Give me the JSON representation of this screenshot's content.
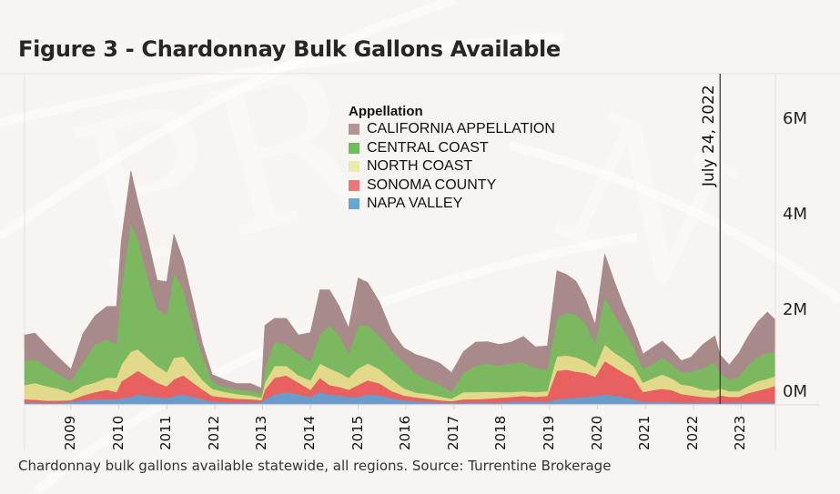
{
  "figure": {
    "title": "Figure 3 - Chardonnay Bulk Gallons Available",
    "caption": "Chardonnay bulk gallons available statewide, all regions. Source: Turrentine Brokerage"
  },
  "chart_data": {
    "type": "area",
    "stacked": true,
    "title": "Figure 3 - Chardonnay Bulk Gallons Available",
    "xlabel": "",
    "ylabel": "",
    "units": "millions of gallons",
    "x_tick_labels": [
      "2009",
      "2010",
      "2011",
      "2012",
      "2013",
      "2014",
      "2015",
      "2016",
      "2017",
      "2018",
      "2019",
      "2020",
      "2021",
      "2022",
      "2023"
    ],
    "y_tick_labels": [
      "0M",
      "2M",
      "4M",
      "6M"
    ],
    "ylim": [
      0,
      6.8
    ],
    "xlim": [
      2008.03,
      2023.7
    ],
    "grid": false,
    "legend": {
      "title": "Appellation",
      "placement": "top-center",
      "entries": [
        "CALIFORNIA APPELLATION",
        "CENTRAL COAST",
        "NORTH COAST",
        "SONOMA COUNTY",
        "NAPA VALLEY"
      ]
    },
    "annotation": {
      "label": "July 24, 2022",
      "x": 2022.56
    },
    "x": [
      2008.03,
      2008.25,
      2008.5,
      2008.75,
      2009.0,
      2009.25,
      2009.5,
      2009.75,
      2009.95,
      2010.05,
      2010.25,
      2010.4,
      2010.6,
      2010.8,
      2011.0,
      2011.15,
      2011.35,
      2011.55,
      2011.75,
      2011.95,
      2012.2,
      2012.45,
      2012.75,
      2012.98,
      2013.05,
      2013.25,
      2013.5,
      2013.75,
      2014.0,
      2014.2,
      2014.4,
      2014.6,
      2014.8,
      2015.0,
      2015.2,
      2015.45,
      2015.7,
      2015.95,
      2016.2,
      2016.45,
      2016.7,
      2016.95,
      2017.2,
      2017.45,
      2017.7,
      2017.95,
      2018.2,
      2018.45,
      2018.7,
      2018.95,
      2019.15,
      2019.35,
      2019.55,
      2019.75,
      2019.95,
      2020.15,
      2020.35,
      2020.55,
      2020.75,
      2020.95,
      2021.15,
      2021.35,
      2021.55,
      2021.75,
      2021.95,
      2022.2,
      2022.45,
      2022.56,
      2022.75,
      2022.95,
      2023.15,
      2023.35,
      2023.55,
      2023.7
    ],
    "series": [
      {
        "name": "NAPA VALLEY",
        "color": "#6a9bcb",
        "values": [
          0.03,
          0.03,
          0.02,
          0.02,
          0.05,
          0.08,
          0.1,
          0.1,
          0.1,
          0.12,
          0.15,
          0.2,
          0.17,
          0.15,
          0.12,
          0.17,
          0.2,
          0.15,
          0.1,
          0.05,
          0.04,
          0.03,
          0.03,
          0.03,
          0.1,
          0.2,
          0.25,
          0.2,
          0.15,
          0.25,
          0.2,
          0.18,
          0.15,
          0.15,
          0.2,
          0.18,
          0.12,
          0.08,
          0.06,
          0.05,
          0.03,
          0.02,
          0.03,
          0.03,
          0.03,
          0.03,
          0.05,
          0.05,
          0.05,
          0.05,
          0.1,
          0.12,
          0.13,
          0.15,
          0.17,
          0.2,
          0.18,
          0.15,
          0.1,
          0.05,
          0.04,
          0.04,
          0.04,
          0.03,
          0.03,
          0.03,
          0.03,
          0.03,
          0.03,
          0.03,
          0.03,
          0.03,
          0.03,
          0.03
        ]
      },
      {
        "name": "SONOMA COUNTY",
        "color": "#e8605f",
        "values": [
          0.07,
          0.06,
          0.05,
          0.05,
          0.03,
          0.1,
          0.15,
          0.2,
          0.15,
          0.35,
          0.45,
          0.5,
          0.4,
          0.3,
          0.25,
          0.35,
          0.4,
          0.3,
          0.2,
          0.12,
          0.1,
          0.08,
          0.07,
          0.05,
          0.2,
          0.35,
          0.35,
          0.25,
          0.15,
          0.3,
          0.2,
          0.18,
          0.15,
          0.25,
          0.3,
          0.25,
          0.15,
          0.1,
          0.08,
          0.06,
          0.05,
          0.04,
          0.07,
          0.07,
          0.08,
          0.1,
          0.1,
          0.12,
          0.1,
          0.12,
          0.6,
          0.6,
          0.55,
          0.5,
          0.4,
          0.7,
          0.6,
          0.5,
          0.45,
          0.2,
          0.25,
          0.28,
          0.25,
          0.18,
          0.15,
          0.12,
          0.1,
          0.15,
          0.12,
          0.12,
          0.2,
          0.25,
          0.3,
          0.35
        ]
      },
      {
        "name": "NORTH COAST",
        "color": "#e2d98a",
        "values": [
          0.3,
          0.35,
          0.3,
          0.25,
          0.15,
          0.2,
          0.2,
          0.25,
          0.3,
          0.35,
          0.5,
          0.45,
          0.4,
          0.35,
          0.3,
          0.45,
          0.4,
          0.3,
          0.2,
          0.15,
          0.12,
          0.1,
          0.08,
          0.05,
          0.15,
          0.25,
          0.2,
          0.15,
          0.2,
          0.3,
          0.35,
          0.3,
          0.25,
          0.35,
          0.35,
          0.3,
          0.25,
          0.15,
          0.1,
          0.1,
          0.08,
          0.05,
          0.15,
          0.15,
          0.15,
          0.12,
          0.1,
          0.1,
          0.1,
          0.1,
          0.3,
          0.3,
          0.3,
          0.25,
          0.2,
          0.35,
          0.3,
          0.3,
          0.25,
          0.2,
          0.25,
          0.3,
          0.25,
          0.2,
          0.2,
          0.15,
          0.15,
          0.15,
          0.12,
          0.12,
          0.15,
          0.2,
          0.2,
          0.2
        ]
      },
      {
        "name": "CENTRAL COAST",
        "color": "#7cb85f",
        "values": [
          0.5,
          0.5,
          0.4,
          0.3,
          0.25,
          0.5,
          0.8,
          0.8,
          0.7,
          1.6,
          2.7,
          2.3,
          1.7,
          1.2,
          1.2,
          1.8,
          1.4,
          0.9,
          0.5,
          0.15,
          0.1,
          0.1,
          0.1,
          0.1,
          0.3,
          0.5,
          0.45,
          0.45,
          0.4,
          0.6,
          0.9,
          0.8,
          0.5,
          0.9,
          0.8,
          0.7,
          0.6,
          0.55,
          0.4,
          0.3,
          0.25,
          0.15,
          0.4,
          0.55,
          0.6,
          0.55,
          0.6,
          0.6,
          0.5,
          0.45,
          0.8,
          0.9,
          0.9,
          0.8,
          0.5,
          1.0,
          0.8,
          0.6,
          0.4,
          0.3,
          0.3,
          0.35,
          0.3,
          0.25,
          0.3,
          0.45,
          0.6,
          0.3,
          0.25,
          0.3,
          0.45,
          0.5,
          0.55,
          0.5
        ]
      },
      {
        "name": "CALIFORNIA APPELLATION",
        "color": "#a88a8a",
        "values": [
          0.55,
          0.55,
          0.45,
          0.35,
          0.25,
          0.6,
          0.6,
          0.7,
          0.8,
          1.0,
          1.1,
          0.8,
          0.8,
          0.6,
          0.7,
          0.8,
          0.6,
          0.5,
          0.25,
          0.15,
          0.15,
          0.12,
          0.15,
          0.1,
          0.9,
          0.5,
          0.55,
          0.4,
          0.6,
          0.95,
          0.75,
          0.6,
          0.55,
          1.0,
          0.9,
          0.7,
          0.4,
          0.3,
          0.4,
          0.45,
          0.45,
          0.4,
          0.45,
          0.5,
          0.45,
          0.45,
          0.45,
          0.55,
          0.45,
          0.5,
          1.0,
          0.8,
          0.7,
          0.5,
          0.4,
          0.9,
          0.7,
          0.5,
          0.4,
          0.3,
          0.35,
          0.35,
          0.3,
          0.25,
          0.3,
          0.5,
          0.55,
          0.4,
          0.3,
          0.5,
          0.6,
          0.75,
          0.85,
          0.7
        ]
      }
    ]
  }
}
